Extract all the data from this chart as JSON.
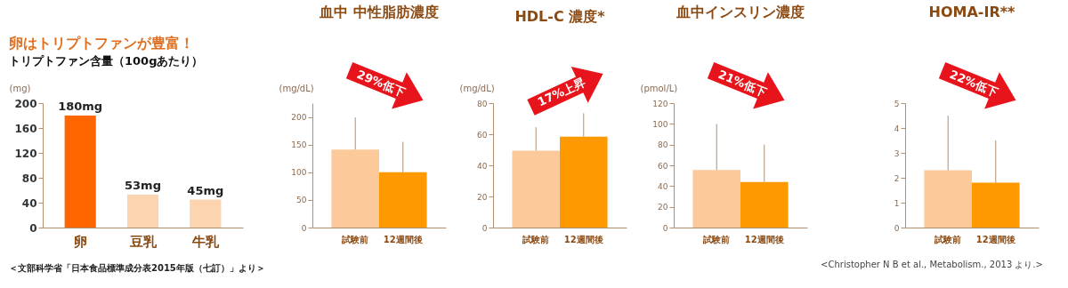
{
  "chart_data": [
    {
      "type": "bar",
      "title": "卵はトリプトファンが豊富！",
      "subtitle": "トリプトファン含量（100gあたり）",
      "ylabel": "(mg)",
      "categories": [
        "卵",
        "豆乳",
        "牛乳"
      ],
      "values": [
        180,
        53,
        45
      ],
      "colors": [
        "#ff6600",
        "#fcd5b0",
        "#fcd5b0"
      ],
      "value_labels": [
        "180mg",
        "53mg",
        "45mg"
      ],
      "ylim": [
        0,
        200
      ],
      "yticks": [
        0,
        40,
        80,
        120,
        160,
        200
      ],
      "annotations": [
        "＜文部科学省「日本食品標準成分表2015年版（七訂）」より＞"
      ]
    },
    {
      "type": "bar",
      "title": "血中 中性脂肪濃度",
      "ylabel": "(mg/dL)",
      "categories": [
        "試験前",
        "12週間後"
      ],
      "values": [
        141,
        100
      ],
      "colors": [
        "#fcc99a",
        "#ff9900"
      ],
      "errors": [
        [
          141,
          199
        ],
        [
          100,
          155
        ]
      ],
      "ylim": [
        0,
        225
      ],
      "yticks": [
        0,
        50,
        100,
        150,
        200
      ],
      "annotations": [
        "29%低下"
      ]
    },
    {
      "type": "bar",
      "title": "HDL-C 濃度*",
      "ylabel": "(mg/dL)",
      "categories": [
        "試験前",
        "12週間後"
      ],
      "values": [
        49.5,
        58.5
      ],
      "colors": [
        "#fcc99a",
        "#ff9900"
      ],
      "errors": [
        [
          49.5,
          64.5
        ],
        [
          58.5,
          73.5
        ]
      ],
      "ylim": [
        0,
        80
      ],
      "yticks": [
        0,
        20,
        40,
        60,
        80
      ],
      "annotations": [
        "17%上昇"
      ]
    },
    {
      "type": "bar",
      "title": "血中インスリン濃度",
      "ylabel": "(pmol/L)",
      "categories": [
        "試験前",
        "12週間後"
      ],
      "values": [
        55.5,
        44
      ],
      "colors": [
        "#fcc99a",
        "#ff9900"
      ],
      "errors": [
        [
          55.5,
          100
        ],
        [
          44,
          80
        ]
      ],
      "ylim": [
        0,
        120
      ],
      "yticks": [
        0,
        20,
        40,
        60,
        80,
        100,
        120
      ],
      "annotations": [
        "21%低下"
      ]
    },
    {
      "type": "bar",
      "title": "HOMA-IR**",
      "categories": [
        "試験前",
        "12週間後"
      ],
      "values": [
        2.3,
        1.8
      ],
      "colors": [
        "#fcc99a",
        "#ff9900"
      ],
      "errors": [
        [
          2.3,
          4.5
        ],
        [
          1.8,
          3.5
        ]
      ],
      "ylim": [
        0,
        5
      ],
      "yticks": [
        0,
        1,
        2,
        3,
        4,
        5
      ],
      "annotations": [
        "22%低下",
        "<Christopher N B et al., Metabolism., 2013 より.>"
      ]
    }
  ]
}
